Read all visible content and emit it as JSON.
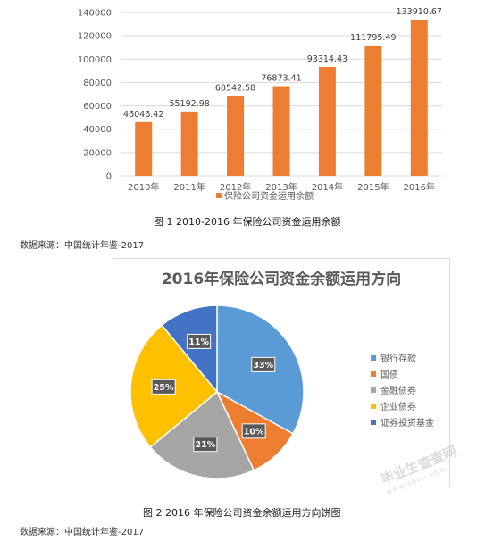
{
  "bar_chart": {
    "caption": "图 1   2010-2016 年保险公司资金运用余额",
    "source": "数据来源：中国统计年鉴-2017",
    "legend_label": "保险公司资金运用余额",
    "bar_color": "#ED7D31"
  },
  "pie_chart": {
    "title": "2016年保险公司资金余额运用方向",
    "caption": "图 2   2016 年保险公司资金余额运用方向饼图",
    "source": "数据来源：中国统计年鉴-2017"
  },
  "watermark": {
    "text": "毕业生查查网",
    "sub": "www.sbvv.com"
  },
  "chart_data": [
    {
      "type": "bar",
      "categories": [
        "2010年",
        "2011年",
        "2012年",
        "2013年",
        "2014年",
        "2015年",
        "2016年"
      ],
      "series": [
        {
          "name": "保险公司资金运用余额",
          "values": [
            46046.42,
            55192.98,
            68542.58,
            76873.41,
            93314.43,
            111795.49,
            133910.67
          ],
          "color": "#ED7D31"
        }
      ],
      "data_labels": [
        "46046.42",
        "55192.98",
        "68542.58",
        "76873.41",
        "93314.43",
        "111795.49",
        "133910.67"
      ],
      "ylim": [
        0,
        140000
      ],
      "yticks": [
        0,
        20000,
        40000,
        60000,
        80000,
        100000,
        120000,
        140000
      ],
      "ytick_labels": [
        "0",
        "20000",
        "40000",
        "60000",
        "80000",
        "100000",
        "120000",
        "140000"
      ],
      "grid": true,
      "legend": "bottom"
    },
    {
      "type": "pie",
      "title": "2016年保险公司资金余额运用方向",
      "categories": [
        "银行存款",
        "国债",
        "金融债券",
        "企业债券",
        "证券投资基金"
      ],
      "values": [
        33,
        10,
        21,
        25,
        11
      ],
      "labels": [
        "33%",
        "10%",
        "21%",
        "25%",
        "11%"
      ],
      "colors": [
        "#5B9BD5",
        "#ED7D31",
        "#A5A5A5",
        "#FFC000",
        "#4472C4"
      ],
      "legend": "right"
    }
  ]
}
